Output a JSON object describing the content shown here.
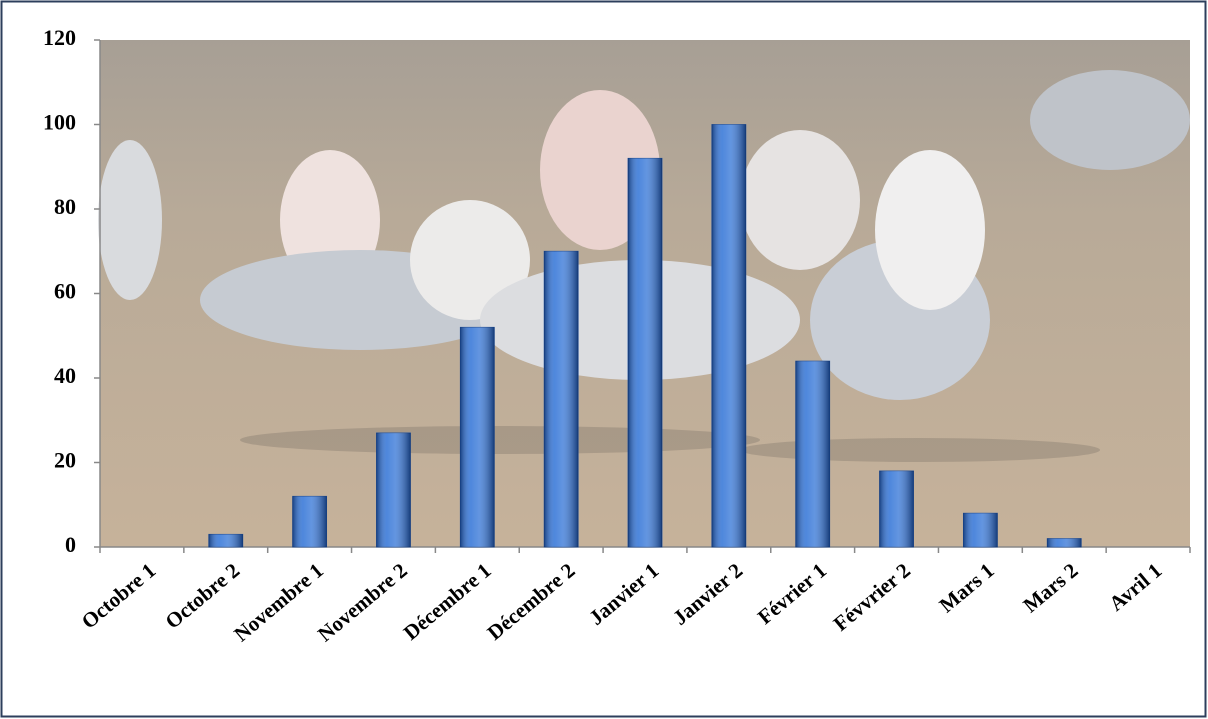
{
  "chart_data": {
    "type": "bar",
    "categories": [
      "Octobre 1",
      "Octobre 2",
      "Novembre 1",
      "Novembre 2",
      "Décembre 1",
      "Décembre 2",
      "Janvier 1",
      "Janvier 2",
      "Février 1",
      "Févvrier 2",
      "Mars 1",
      "Mars 2",
      "Avril 1"
    ],
    "values": [
      0,
      3,
      12,
      27,
      52,
      70,
      92,
      100,
      44,
      18,
      8,
      2,
      0
    ],
    "color": "#2f72d6",
    "ylim": [
      0,
      120
    ],
    "yticks": [
      0,
      20,
      40,
      60,
      80,
      100,
      120
    ]
  }
}
